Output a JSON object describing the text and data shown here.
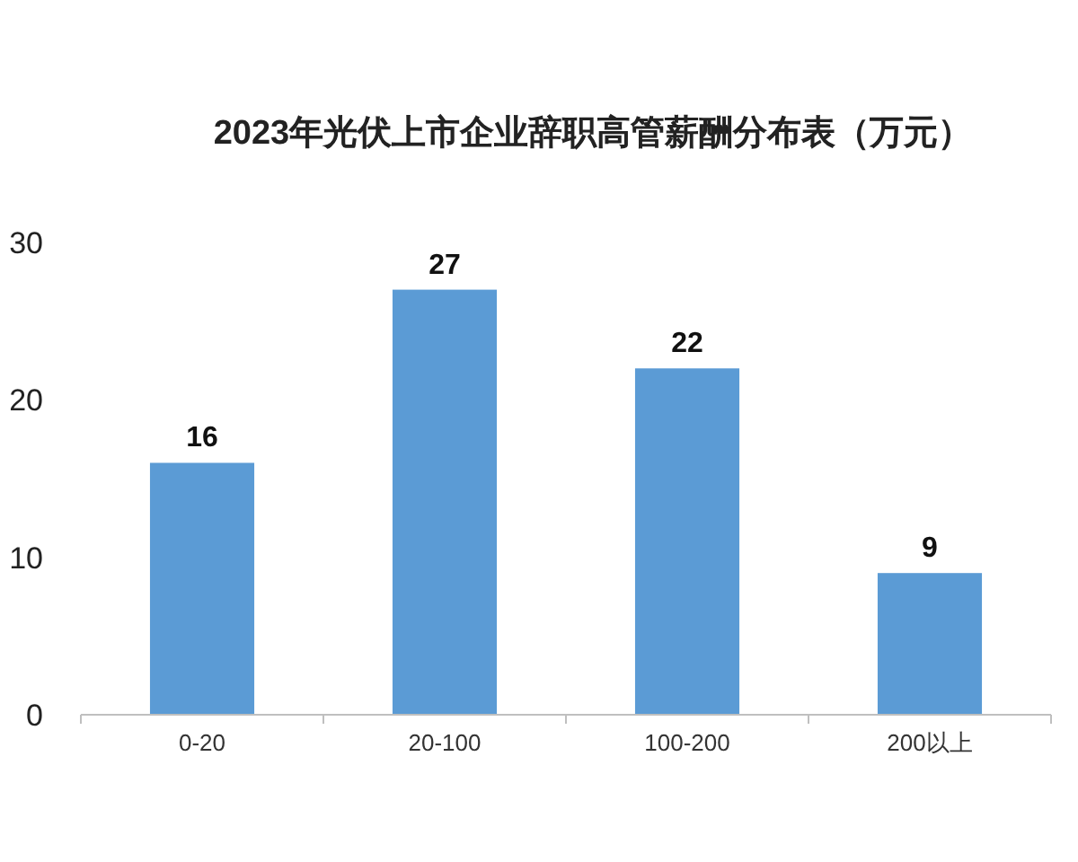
{
  "chart_data": {
    "type": "bar",
    "title": "2023年光伏上市企业辞职高管薪酬分布表（万元）",
    "categories": [
      "0-20",
      "20-100",
      "100-200",
      "200以上"
    ],
    "values": [
      16,
      27,
      22,
      9
    ],
    "color": "#5b9bd5",
    "ylim": [
      0,
      30
    ],
    "yticks": [
      0,
      10,
      20,
      30
    ],
    "data_labels": true,
    "grid": false
  }
}
